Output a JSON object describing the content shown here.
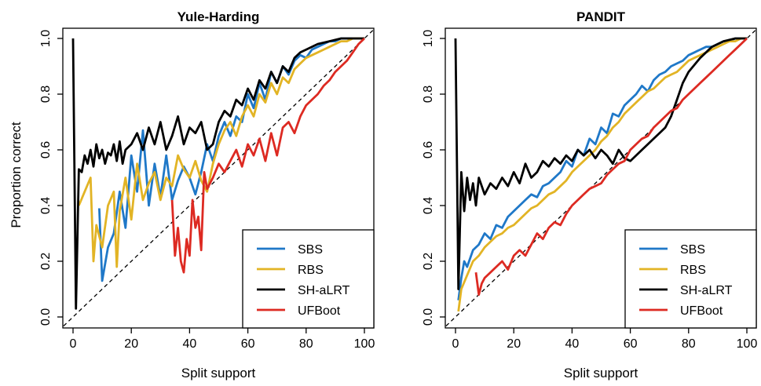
{
  "chart_data": [
    {
      "type": "line",
      "title": "Yule-Harding",
      "xlabel": "Split support",
      "ylabel": "Proportion correct",
      "xlim": [
        0,
        100
      ],
      "ylim": [
        0,
        1
      ],
      "xticks": [
        0,
        20,
        40,
        60,
        80,
        100
      ],
      "yticks": [
        0.0,
        0.2,
        0.4,
        0.6,
        0.8,
        1.0
      ],
      "ytick_labels": [
        "0.0",
        "0.2",
        "0.4",
        "0.6",
        "0.8",
        "1.0"
      ],
      "reference_line": "y = x (dashed)",
      "legend_position": "bottom-right",
      "series": [
        {
          "name": "SBS",
          "color": "#1f78c8",
          "x": [
            9,
            10,
            12,
            14,
            16,
            18,
            20,
            22,
            24,
            26,
            28,
            30,
            32,
            34,
            36,
            38,
            40,
            42,
            44,
            46,
            48,
            50,
            52,
            54,
            56,
            58,
            60,
            62,
            64,
            66,
            68,
            70,
            72,
            74,
            76,
            78,
            80,
            82,
            84,
            86,
            88,
            90,
            92,
            94,
            96,
            98,
            100
          ],
          "y": [
            0.39,
            0.13,
            0.25,
            0.3,
            0.45,
            0.32,
            0.58,
            0.45,
            0.67,
            0.4,
            0.55,
            0.43,
            0.58,
            0.42,
            0.49,
            0.54,
            0.5,
            0.44,
            0.52,
            0.62,
            0.56,
            0.65,
            0.7,
            0.65,
            0.72,
            0.7,
            0.8,
            0.75,
            0.84,
            0.78,
            0.88,
            0.84,
            0.9,
            0.87,
            0.92,
            0.94,
            0.93,
            0.96,
            0.97,
            0.98,
            0.99,
            0.99,
            1.0,
            1.0,
            1.0,
            1.0,
            1.0
          ]
        },
        {
          "name": "RBS",
          "color": "#e2b425",
          "x": [
            2,
            4,
            6,
            7,
            8,
            10,
            12,
            14,
            15,
            16,
            18,
            20,
            22,
            24,
            26,
            28,
            30,
            32,
            34,
            36,
            38,
            40,
            42,
            44,
            46,
            48,
            50,
            52,
            54,
            56,
            58,
            60,
            62,
            64,
            66,
            68,
            70,
            72,
            74,
            76,
            78,
            80,
            82,
            84,
            86,
            88,
            90,
            92,
            94,
            96,
            98,
            100
          ],
          "y": [
            0.4,
            0.45,
            0.5,
            0.2,
            0.33,
            0.25,
            0.4,
            0.45,
            0.18,
            0.38,
            0.5,
            0.35,
            0.55,
            0.42,
            0.48,
            0.52,
            0.42,
            0.5,
            0.47,
            0.58,
            0.53,
            0.5,
            0.56,
            0.49,
            0.45,
            0.55,
            0.62,
            0.67,
            0.7,
            0.65,
            0.72,
            0.76,
            0.72,
            0.8,
            0.77,
            0.84,
            0.8,
            0.86,
            0.84,
            0.89,
            0.91,
            0.93,
            0.94,
            0.95,
            0.96,
            0.97,
            0.98,
            0.99,
            0.99,
            1.0,
            1.0,
            1.0
          ]
        },
        {
          "name": "SH-aLRT",
          "color": "#000000",
          "x": [
            0,
            1,
            2,
            3,
            4,
            5,
            6,
            7,
            8,
            9,
            10,
            11,
            12,
            13,
            14,
            15,
            16,
            17,
            18,
            20,
            22,
            24,
            26,
            28,
            30,
            32,
            34,
            36,
            38,
            40,
            42,
            44,
            46,
            48,
            50,
            52,
            54,
            56,
            58,
            60,
            62,
            64,
            66,
            68,
            70,
            72,
            74,
            76,
            78,
            80,
            84,
            88,
            92,
            96,
            100
          ],
          "y": [
            1.0,
            0.03,
            0.53,
            0.52,
            0.58,
            0.55,
            0.6,
            0.54,
            0.62,
            0.57,
            0.6,
            0.55,
            0.59,
            0.58,
            0.62,
            0.56,
            0.63,
            0.55,
            0.6,
            0.62,
            0.66,
            0.6,
            0.68,
            0.62,
            0.7,
            0.6,
            0.65,
            0.72,
            0.62,
            0.68,
            0.66,
            0.7,
            0.6,
            0.62,
            0.7,
            0.74,
            0.72,
            0.78,
            0.76,
            0.82,
            0.78,
            0.85,
            0.82,
            0.88,
            0.84,
            0.9,
            0.88,
            0.93,
            0.95,
            0.96,
            0.98,
            0.99,
            1.0,
            1.0,
            1.0
          ]
        },
        {
          "name": "UFBoot",
          "color": "#dd2a22",
          "x": [
            34,
            35,
            36,
            37,
            38,
            39,
            40,
            41,
            42,
            43,
            44,
            45,
            46,
            48,
            50,
            52,
            54,
            56,
            58,
            60,
            62,
            64,
            66,
            68,
            70,
            72,
            74,
            76,
            78,
            80,
            82,
            84,
            86,
            88,
            90,
            92,
            94,
            96,
            98,
            100
          ],
          "y": [
            0.42,
            0.22,
            0.32,
            0.2,
            0.16,
            0.28,
            0.22,
            0.42,
            0.32,
            0.36,
            0.24,
            0.52,
            0.46,
            0.5,
            0.55,
            0.52,
            0.56,
            0.6,
            0.54,
            0.62,
            0.58,
            0.64,
            0.56,
            0.66,
            0.58,
            0.68,
            0.7,
            0.66,
            0.72,
            0.76,
            0.78,
            0.8,
            0.83,
            0.85,
            0.88,
            0.9,
            0.92,
            0.95,
            0.98,
            1.0
          ]
        }
      ]
    },
    {
      "type": "line",
      "title": "PANDIT",
      "xlabel": "Split support",
      "ylabel": "",
      "xlim": [
        0,
        100
      ],
      "ylim": [
        0,
        1
      ],
      "xticks": [
        0,
        20,
        40,
        60,
        80,
        100
      ],
      "yticks": [
        0.0,
        0.2,
        0.4,
        0.6,
        0.8,
        1.0
      ],
      "ytick_labels": [
        "0.0",
        "0.2",
        "0.4",
        "0.6",
        "0.8",
        "1.0"
      ],
      "reference_line": "y = x (dashed)",
      "legend_position": "bottom-right",
      "series": [
        {
          "name": "SBS",
          "color": "#1f78c8",
          "x": [
            1,
            2,
            3,
            4,
            6,
            8,
            10,
            12,
            14,
            16,
            18,
            20,
            22,
            24,
            26,
            28,
            30,
            32,
            34,
            36,
            38,
            40,
            42,
            44,
            46,
            48,
            50,
            52,
            54,
            56,
            58,
            60,
            62,
            64,
            66,
            68,
            70,
            72,
            74,
            76,
            78,
            80,
            82,
            84,
            86,
            88,
            90,
            92,
            94,
            96,
            98,
            100
          ],
          "y": [
            0.06,
            0.14,
            0.2,
            0.18,
            0.24,
            0.26,
            0.3,
            0.28,
            0.33,
            0.32,
            0.36,
            0.38,
            0.4,
            0.42,
            0.44,
            0.43,
            0.47,
            0.48,
            0.5,
            0.52,
            0.56,
            0.54,
            0.6,
            0.58,
            0.64,
            0.62,
            0.68,
            0.66,
            0.73,
            0.72,
            0.76,
            0.78,
            0.8,
            0.83,
            0.81,
            0.85,
            0.87,
            0.88,
            0.9,
            0.91,
            0.92,
            0.94,
            0.95,
            0.96,
            0.97,
            0.97,
            0.98,
            0.99,
            0.99,
            1.0,
            1.0,
            1.0
          ]
        },
        {
          "name": "RBS",
          "color": "#e2b425",
          "x": [
            1,
            2,
            4,
            6,
            8,
            10,
            12,
            14,
            16,
            18,
            20,
            22,
            24,
            26,
            28,
            30,
            32,
            34,
            36,
            38,
            40,
            42,
            44,
            46,
            48,
            50,
            52,
            54,
            56,
            58,
            60,
            62,
            64,
            66,
            68,
            70,
            72,
            74,
            76,
            78,
            80,
            82,
            84,
            86,
            88,
            90,
            92,
            94,
            96,
            98,
            100
          ],
          "y": [
            0.02,
            0.1,
            0.15,
            0.2,
            0.22,
            0.25,
            0.27,
            0.29,
            0.3,
            0.32,
            0.33,
            0.35,
            0.37,
            0.39,
            0.4,
            0.42,
            0.44,
            0.45,
            0.47,
            0.49,
            0.52,
            0.54,
            0.56,
            0.58,
            0.6,
            0.63,
            0.65,
            0.68,
            0.7,
            0.73,
            0.75,
            0.77,
            0.79,
            0.81,
            0.82,
            0.84,
            0.86,
            0.87,
            0.88,
            0.9,
            0.92,
            0.93,
            0.94,
            0.95,
            0.96,
            0.97,
            0.98,
            0.99,
            0.99,
            1.0,
            1.0
          ]
        },
        {
          "name": "SH-aLRT",
          "color": "#000000",
          "x": [
            0,
            1,
            2,
            3,
            4,
            5,
            6,
            7,
            8,
            10,
            12,
            14,
            16,
            18,
            20,
            22,
            24,
            26,
            28,
            30,
            32,
            34,
            36,
            38,
            40,
            42,
            44,
            46,
            48,
            50,
            52,
            54,
            56,
            58,
            60,
            62,
            64,
            66,
            68,
            70,
            72,
            74,
            76,
            78,
            80,
            84,
            88,
            92,
            96,
            100
          ],
          "y": [
            1.0,
            0.1,
            0.52,
            0.38,
            0.5,
            0.42,
            0.48,
            0.4,
            0.5,
            0.44,
            0.48,
            0.46,
            0.5,
            0.47,
            0.52,
            0.48,
            0.55,
            0.5,
            0.52,
            0.56,
            0.54,
            0.57,
            0.55,
            0.58,
            0.56,
            0.6,
            0.58,
            0.6,
            0.57,
            0.6,
            0.58,
            0.55,
            0.6,
            0.57,
            0.56,
            0.58,
            0.6,
            0.62,
            0.64,
            0.66,
            0.68,
            0.72,
            0.78,
            0.84,
            0.88,
            0.93,
            0.97,
            0.99,
            1.0,
            1.0
          ]
        },
        {
          "name": "UFBoot",
          "color": "#dd2a22",
          "x": [
            7,
            8,
            9,
            10,
            12,
            14,
            16,
            18,
            20,
            22,
            24,
            26,
            28,
            30,
            32,
            34,
            36,
            38,
            40,
            42,
            44,
            46,
            48,
            50,
            52,
            54,
            56,
            58,
            60,
            62,
            64,
            66,
            68,
            70,
            72,
            74,
            76,
            78,
            80,
            82,
            84,
            86,
            88,
            90,
            92,
            94,
            96,
            98,
            100
          ],
          "y": [
            0.16,
            0.08,
            0.12,
            0.14,
            0.16,
            0.18,
            0.2,
            0.17,
            0.22,
            0.24,
            0.22,
            0.26,
            0.3,
            0.28,
            0.32,
            0.34,
            0.33,
            0.37,
            0.4,
            0.42,
            0.44,
            0.46,
            0.47,
            0.48,
            0.51,
            0.53,
            0.55,
            0.56,
            0.6,
            0.62,
            0.64,
            0.65,
            0.68,
            0.7,
            0.72,
            0.74,
            0.75,
            0.78,
            0.8,
            0.82,
            0.84,
            0.86,
            0.88,
            0.9,
            0.92,
            0.94,
            0.96,
            0.98,
            1.0
          ]
        }
      ]
    }
  ]
}
